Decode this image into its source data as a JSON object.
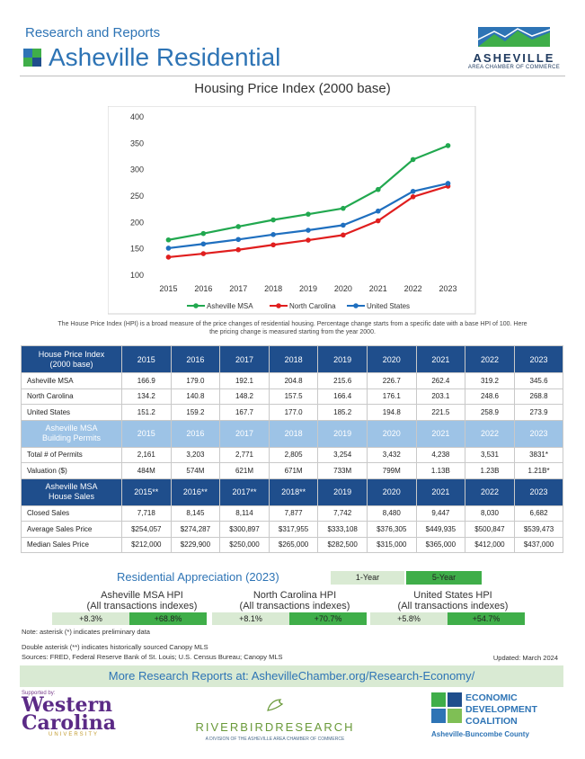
{
  "header": {
    "kicker": "Research and Reports",
    "title": "Asheville Residential",
    "logo_word": "ASHEVILLE",
    "logo_sub": "AREA CHAMBER OF COMMERCE"
  },
  "chart_data": {
    "type": "line",
    "title": "Housing Price Index (2000 base)",
    "xlabel": "",
    "ylabel": "",
    "x": [
      "2015",
      "2016",
      "2017",
      "2018",
      "2019",
      "2020",
      "2021",
      "2022",
      "2023"
    ],
    "yticks": [
      100,
      150,
      200,
      250,
      300,
      350,
      400
    ],
    "ylim": [
      100,
      400
    ],
    "grid": false,
    "legend": "bottom",
    "series": [
      {
        "name": "Asheville MSA",
        "color": "#21a84f",
        "values": [
          166.9,
          179.0,
          192.1,
          204.8,
          215.6,
          226.7,
          262.4,
          319.2,
          345.6
        ]
      },
      {
        "name": "North Carolina",
        "color": "#e01e1e",
        "values": [
          134.2,
          140.8,
          148.2,
          157.5,
          166.4,
          176.1,
          203.1,
          248.6,
          268.8
        ]
      },
      {
        "name": "United States",
        "color": "#1f6fbf",
        "values": [
          151.2,
          159.2,
          167.7,
          177.0,
          185.2,
          194.8,
          221.5,
          258.9,
          273.9
        ]
      }
    ]
  },
  "hpi_note": "The House Price Index (HPI) is a broad measure of the price changes of residential housing. Percentage change starts from a specific date with a base HPI of 100. Here the pricing change is measured starting from the year 2000.",
  "table": {
    "hpi_header": {
      "label_line1": "House Price Index",
      "label_line2": "(2000 base)",
      "years": [
        "2015",
        "2016",
        "2017",
        "2018",
        "2019",
        "2020",
        "2021",
        "2022",
        "2023"
      ]
    },
    "hpi_rows": [
      {
        "label": "Asheville MSA",
        "values": [
          "166.9",
          "179.0",
          "192.1",
          "204.8",
          "215.6",
          "226.7",
          "262.4",
          "319.2",
          "345.6"
        ]
      },
      {
        "label": "North Carolina",
        "values": [
          "134.2",
          "140.8",
          "148.2",
          "157.5",
          "166.4",
          "176.1",
          "203.1",
          "248.6",
          "268.8"
        ]
      },
      {
        "label": "United States",
        "values": [
          "151.2",
          "159.2",
          "167.7",
          "177.0",
          "185.2",
          "194.8",
          "221.5",
          "258.9",
          "273.9"
        ]
      }
    ],
    "permits_header": {
      "label_line1": "Asheville MSA",
      "label_line2": "Building Permits",
      "years": [
        "2015",
        "2016",
        "2017",
        "2018",
        "2019",
        "2020",
        "2021",
        "2022",
        "2023"
      ]
    },
    "permits_rows": [
      {
        "label": "Total # of Permits",
        "values": [
          "2,161",
          "3,203",
          "2,771",
          "2,805",
          "3,254",
          "3,432",
          "4,238",
          "3,531",
          "3831*"
        ]
      },
      {
        "label": "Valuation ($)",
        "values": [
          "484M",
          "574M",
          "621M",
          "671M",
          "733M",
          "799M",
          "1.13B",
          "1.23B",
          "1.21B*"
        ]
      }
    ],
    "sales_header": {
      "label_line1": "Asheville MSA",
      "label_line2": "House Sales",
      "years": [
        "2015**",
        "2016**",
        "2017**",
        "2018**",
        "2019",
        "2020",
        "2021",
        "2022",
        "2023"
      ]
    },
    "sales_rows": [
      {
        "label": "Closed Sales",
        "values": [
          "7,718",
          "8,145",
          "8,114",
          "7,877",
          "7,742",
          "8,480",
          "9,447",
          "8,030",
          "6,682"
        ]
      },
      {
        "label": "Average Sales Price",
        "values": [
          "$254,057",
          "$274,287",
          "$300,897",
          "$317,955",
          "$333,108",
          "$376,305",
          "$449,935",
          "$500,847",
          "$539,473"
        ]
      },
      {
        "label": "Median Sales Price",
        "values": [
          "$212,000",
          "$229,900",
          "$250,000",
          "$265,000",
          "$282,500",
          "$315,000",
          "$365,000",
          "$412,000",
          "$437,000"
        ]
      }
    ]
  },
  "appreciation": {
    "title": "Residential Appreciation (2023)",
    "legend_1yr": "1-Year",
    "legend_5yr": "5-Year",
    "color_1yr": "#d9ead3",
    "color_5yr": "#3fae49",
    "groups": [
      {
        "line1": "Asheville MSA HPI",
        "line2": "(All transactions indexes)",
        "one_year": "+8.3%",
        "five_year": "+68.8%"
      },
      {
        "line1": "North Carolina HPI",
        "line2": "(All transactions indexes)",
        "one_year": "+8.1%",
        "five_year": "+70.7%"
      },
      {
        "line1": "United States HPI",
        "line2": "(All transactions indexes)",
        "one_year": "+5.8%",
        "five_year": "+54.7%"
      }
    ]
  },
  "notes": {
    "asterisk": "Note: asterisk (*) indicates preliminary data",
    "double_asterisk": "Double asterisk (**) indicates historically sourced Canopy MLS",
    "sources": "Sources: FRED, Federal Reserve Bank of St. Louis; U.S. Census Bureau; Canopy MLS",
    "updated": "Updated: March 2024"
  },
  "banner": "More Research Reports at: AshevilleChamber.org/Research-Economy/",
  "footer": {
    "wcu_supported": "Supported by:",
    "wcu_line1": "Western",
    "wcu_line2": "Carolina",
    "wcu_line3": "UNIVERSITY",
    "riverbird_name": "RIVERBIRDRESEARCH",
    "riverbird_sub": "A DIVISION OF THE ASHEVILLE AREA CHAMBER OF COMMERCE",
    "edc_line1": "ECONOMIC",
    "edc_line2": "DEVELOPMENT",
    "edc_line3": "COALITION",
    "edc_sub": "Asheville-Buncombe County"
  }
}
